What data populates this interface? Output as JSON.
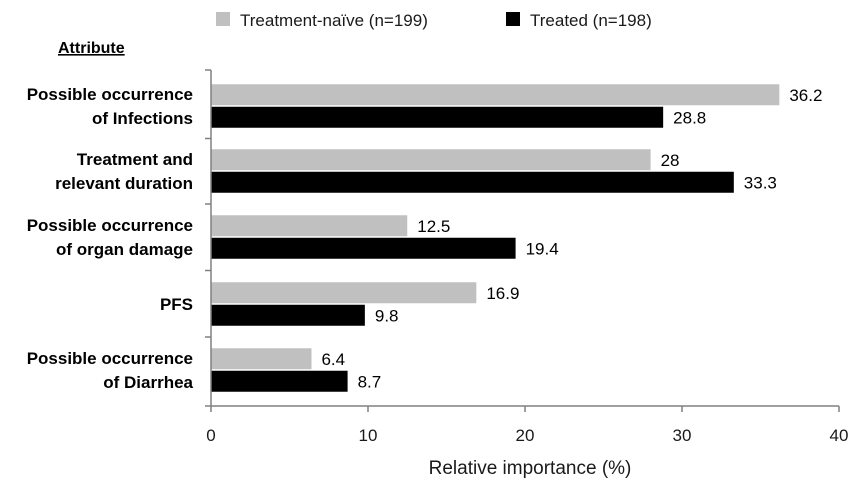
{
  "chart_data": {
    "type": "bar",
    "orientation": "horizontal",
    "title": "",
    "category_heading": "Attribute",
    "xlabel": "Relative importance (%)",
    "xlim": [
      0,
      40
    ],
    "xticks": [
      0,
      10,
      20,
      30,
      40
    ],
    "grid": false,
    "legend_position": "top",
    "categories": [
      [
        "Possible occurrence",
        "of Infections"
      ],
      [
        "Treatment and",
        "relevant duration"
      ],
      [
        "Possible occurrence",
        "of organ damage"
      ],
      [
        "PFS"
      ],
      [
        "Possible occurrence",
        "of Diarrhea"
      ]
    ],
    "series": [
      {
        "name": "Treatment-naïve (n=199)",
        "color": "#c0c0c0",
        "values": [
          36.2,
          28,
          12.5,
          16.9,
          6.4
        ]
      },
      {
        "name": "Treated (n=198)",
        "color": "#000000",
        "values": [
          28.8,
          33.3,
          19.4,
          9.8,
          8.7
        ]
      }
    ]
  }
}
